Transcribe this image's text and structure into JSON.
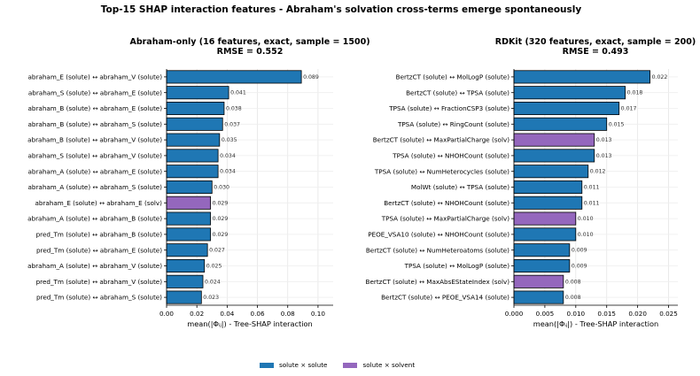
{
  "suptitle": "Top-15 SHAP interaction features - Abraham's solvation cross-terms emerge spontaneously",
  "colors": {
    "solute": "#1f77b4",
    "solvent": "#9467bd"
  },
  "legend": {
    "solute_label": "solute × solute",
    "solvent_label": "solute × solvent"
  },
  "chart_data": [
    {
      "type": "bar",
      "orientation": "horizontal",
      "title": "Abraham-only (16 features, exact, sample = 1500)",
      "subtitle": "RMSE = 0.552",
      "xlabel": "mean(|Φᵢⱼ|) - Tree-SHAP interaction",
      "xlim": [
        0,
        0.11
      ],
      "xticks": [
        0,
        0.02,
        0.04,
        0.06,
        0.08,
        0.1
      ],
      "xtick_labels": [
        "0.00",
        "0.02",
        "0.04",
        "0.06",
        "0.08",
        "0.10"
      ],
      "grid": true,
      "categories": [
        "abraham_E  (solute)  ↔  abraham_V  (solute)",
        "abraham_S  (solute)  ↔  abraham_E  (solute)",
        "abraham_B  (solute)  ↔  abraham_E  (solute)",
        "abraham_B  (solute)  ↔  abraham_S  (solute)",
        "abraham_B  (solute)  ↔  abraham_V  (solute)",
        "abraham_S  (solute)  ↔  abraham_V  (solute)",
        "abraham_A  (solute)  ↔  abraham_E  (solute)",
        "abraham_A  (solute)  ↔  abraham_S  (solute)",
        "abraham_E  (solute)  ↔  abraham_E  (solv)",
        "abraham_A  (solute)  ↔  abraham_B  (solute)",
        "pred_Tm  (solute)  ↔  abraham_B  (solute)",
        "pred_Tm  (solute)  ↔  abraham_E  (solute)",
        "abraham_A  (solute)  ↔  abraham_V  (solute)",
        "pred_Tm  (solute)  ↔  abraham_V  (solute)",
        "pred_Tm  (solute)  ↔  abraham_S  (solute)"
      ],
      "values": [
        0.089,
        0.041,
        0.038,
        0.037,
        0.035,
        0.034,
        0.034,
        0.03,
        0.029,
        0.029,
        0.029,
        0.027,
        0.025,
        0.024,
        0.023
      ],
      "value_labels": [
        "0.089",
        "0.041",
        "0.038",
        "0.037",
        "0.035",
        "0.034",
        "0.034",
        "0.030",
        "0.029",
        "0.029",
        "0.029",
        "0.027",
        "0.025",
        "0.024",
        "0.023"
      ],
      "kinds": [
        "solute",
        "solute",
        "solute",
        "solute",
        "solute",
        "solute",
        "solute",
        "solute",
        "solvent",
        "solute",
        "solute",
        "solute",
        "solute",
        "solute",
        "solute"
      ]
    },
    {
      "type": "bar",
      "orientation": "horizontal",
      "title": "RDKit (320 features, exact, sample = 200)",
      "subtitle": "RMSE = 0.493",
      "xlabel": "mean(|Φᵢⱼ|) - Tree-SHAP interaction",
      "xlim": [
        0,
        0.0265
      ],
      "xticks": [
        0,
        0.005,
        0.01,
        0.015,
        0.02,
        0.025
      ],
      "xtick_labels": [
        "0.000",
        "0.005",
        "0.010",
        "0.015",
        "0.020",
        "0.025"
      ],
      "grid": true,
      "categories": [
        "BertzCT  (solute)  ↔  MolLogP  (solute)",
        "BertzCT  (solute)  ↔  TPSA  (solute)",
        "TPSA  (solute)  ↔  FractionCSP3  (solute)",
        "TPSA  (solute)  ↔  RingCount  (solute)",
        "BertzCT  (solute)  ↔  MaxPartialCharge  (solv)",
        "TPSA  (solute)  ↔  NHOHCount  (solute)",
        "TPSA  (solute)  ↔  NumHeterocycles  (solute)",
        "MolWt  (solute)  ↔  TPSA  (solute)",
        "BertzCT  (solute)  ↔  NHOHCount  (solute)",
        "TPSA  (solute)  ↔  MaxPartialCharge  (solv)",
        "PEOE_VSA10  (solute)  ↔  NHOHCount  (solute)",
        "BertzCT  (solute)  ↔  NumHeteroatoms  (solute)",
        "TPSA  (solute)  ↔  MolLogP  (solute)",
        "BertzCT  (solute)  ↔  MaxAbsEStateIndex  (solv)",
        "BertzCT  (solute)  ↔  PEOE_VSA14  (solute)"
      ],
      "values": [
        0.022,
        0.018,
        0.017,
        0.015,
        0.013,
        0.013,
        0.012,
        0.011,
        0.011,
        0.01,
        0.01,
        0.009,
        0.009,
        0.008,
        0.008
      ],
      "value_labels": [
        "0.022",
        "0.018",
        "0.017",
        "0.015",
        "0.013",
        "0.013",
        "0.012",
        "0.011",
        "0.011",
        "0.010",
        "0.010",
        "0.009",
        "0.009",
        "0.008",
        "0.008"
      ],
      "kinds": [
        "solute",
        "solute",
        "solute",
        "solute",
        "solvent",
        "solute",
        "solute",
        "solute",
        "solute",
        "solvent",
        "solute",
        "solute",
        "solute",
        "solvent",
        "solute"
      ]
    }
  ]
}
